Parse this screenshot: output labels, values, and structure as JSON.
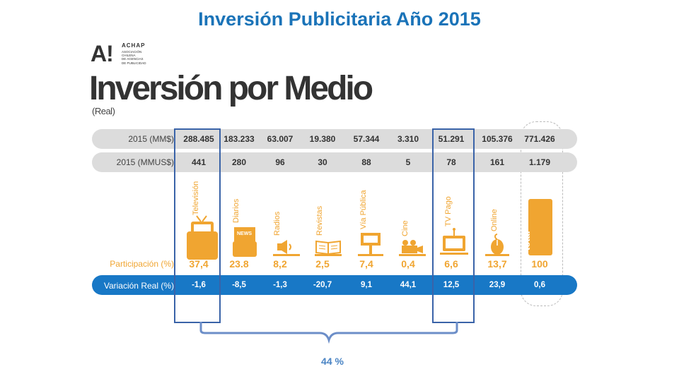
{
  "slide_title": "Inversión Publicitaria Año 2015",
  "logo": {
    "mark": "A!",
    "name": "ACHAP",
    "subtitle_lines": [
      "ASOCIACIÓN",
      "CHILENA",
      "DE AGENCIAS",
      "DE PUBLICIDAD"
    ]
  },
  "heading": "Inversión por Medio",
  "subheading": "(Real)",
  "row_labels": {
    "mm": "2015 (MM$)",
    "mmus": "2015 (MMUS$)",
    "participation": "Participación (%)",
    "variation": "Variación Real (%)"
  },
  "colors": {
    "title_blue": "#1a73b8",
    "accent_orange": "#f0a531",
    "variation_bar_blue": "#1878c6",
    "pill_gray": "#dcdcdc",
    "highlight_box": "#3a63a8"
  },
  "media": [
    {
      "name": "Televisión",
      "icon": "tv-icon",
      "mm": "288.485",
      "mmus": "441",
      "participation": "37,4",
      "variation": "-1,6"
    },
    {
      "name": "Diarios",
      "icon": "newspaper-icon",
      "mm": "183.233",
      "mmus": "280",
      "participation": "23.8",
      "variation": "-8,5"
    },
    {
      "name": "Radios",
      "icon": "radio-speaker-icon",
      "mm": "63.007",
      "mmus": "96",
      "participation": "8,2",
      "variation": "-1,3"
    },
    {
      "name": "Revistas",
      "icon": "magazine-icon",
      "mm": "19.380",
      "mmus": "30",
      "participation": "2,5",
      "variation": "-20,7"
    },
    {
      "name": "Vía Pública",
      "icon": "billboard-icon",
      "mm": "57.344",
      "mmus": "88",
      "participation": "7,4",
      "variation": "9,1"
    },
    {
      "name": "Cine",
      "icon": "film-camera-icon",
      "mm": "3.310",
      "mmus": "5",
      "participation": "0,4",
      "variation": "44,1"
    },
    {
      "name": "TV Pago",
      "icon": "pay-tv-icon",
      "mm": "51.291",
      "mmus": "78",
      "participation": "6,6",
      "variation": "12,5"
    },
    {
      "name": "Online",
      "icon": "mouse-icon",
      "mm": "105.376",
      "mmus": "161",
      "participation": "13,7",
      "variation": "23,9"
    },
    {
      "name": "total",
      "icon": "",
      "mm": "771.426",
      "mmus": "1.179",
      "participation": "100",
      "variation": "0,6"
    }
  ],
  "chart_data": {
    "type": "table",
    "title": "Inversión por Medio",
    "subtitle": "(Real)",
    "columns": [
      "Televisión",
      "Diarios",
      "Radios",
      "Revistas",
      "Vía Pública",
      "Cine",
      "TV Pago",
      "Online",
      "total"
    ],
    "rows": [
      {
        "label": "2015 (MM$)",
        "values": [
          288485,
          183233,
          63007,
          19380,
          57344,
          3310,
          51291,
          105376,
          771426
        ]
      },
      {
        "label": "2015 (MMUS$)",
        "values": [
          441,
          280,
          96,
          30,
          88,
          5,
          78,
          161,
          1179
        ]
      },
      {
        "label": "Participación (%)",
        "values": [
          37.4,
          23.8,
          8.2,
          2.5,
          7.4,
          0.4,
          6.6,
          13.7,
          100
        ]
      },
      {
        "label": "Variación Real (%)",
        "values": [
          -1.6,
          -8.5,
          -1.3,
          -20.7,
          9.1,
          44.1,
          12.5,
          23.9,
          0.6
        ]
      }
    ],
    "highlight": {
      "columns": [
        "Televisión",
        "TV Pago"
      ],
      "label": "44 %"
    }
  }
}
